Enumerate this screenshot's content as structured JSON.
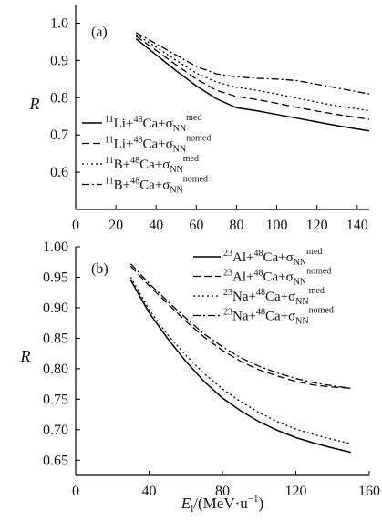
{
  "chart_data": [
    {
      "type": "line",
      "panel_label": "(a)",
      "ylabel": "R",
      "xlim": [
        0,
        146
      ],
      "ylim": [
        0.5,
        1.05
      ],
      "xticks": [
        0,
        20,
        40,
        60,
        80,
        100,
        120,
        140
      ],
      "yticks": [
        0.6,
        0.7,
        0.8,
        0.9,
        1.0
      ],
      "xtick_labels": [
        "0",
        "20",
        "40",
        "60",
        "80",
        "100",
        "120",
        "140"
      ],
      "ytick_labels": [
        "0.6",
        "0.7",
        "0.8",
        "0.9",
        "1.0"
      ],
      "legend_position": "bottom-left",
      "series": [
        {
          "legend": {
            "pre": "",
            "proj": "11",
            "projEl": "Li",
            "tgt": "48",
            "tgtEl": "Ca",
            "sig": "NN",
            "kind": "med"
          },
          "style": "solid",
          "x": [
            30,
            40,
            50,
            60,
            70,
            80,
            90,
            100,
            110,
            120,
            130,
            140,
            146
          ],
          "y": [
            0.958,
            0.915,
            0.872,
            0.832,
            0.797,
            0.773,
            0.765,
            0.755,
            0.745,
            0.735,
            0.725,
            0.716,
            0.711
          ]
        },
        {
          "legend": {
            "pre": "",
            "proj": "11",
            "projEl": "Li",
            "tgt": "48",
            "tgtEl": "Ca",
            "sig": "NN",
            "kind": "nomed"
          },
          "style": "dashed",
          "x": [
            30,
            40,
            50,
            60,
            70,
            80,
            90,
            100,
            110,
            120,
            130,
            140,
            146
          ],
          "y": [
            0.965,
            0.927,
            0.888,
            0.85,
            0.82,
            0.803,
            0.795,
            0.785,
            0.774,
            0.764,
            0.755,
            0.747,
            0.742
          ]
        },
        {
          "legend": {
            "pre": "",
            "proj": "11",
            "projEl": "B",
            "tgt": "48",
            "tgtEl": "Ca",
            "sig": "NN",
            "kind": "med"
          },
          "style": "dotted",
          "x": [
            30,
            40,
            50,
            60,
            70,
            80,
            90,
            100,
            110,
            120,
            130,
            140,
            146
          ],
          "y": [
            0.97,
            0.936,
            0.9,
            0.866,
            0.842,
            0.828,
            0.82,
            0.81,
            0.799,
            0.788,
            0.778,
            0.77,
            0.765
          ]
        },
        {
          "legend": {
            "pre": "",
            "proj": "11",
            "projEl": "B",
            "tgt": "48",
            "tgtEl": "Ca",
            "sig": "NN",
            "kind": "nomed"
          },
          "style": "dashdot",
          "x": [
            30,
            40,
            50,
            60,
            70,
            80,
            90,
            100,
            110,
            120,
            130,
            140,
            146
          ],
          "y": [
            0.975,
            0.945,
            0.914,
            0.884,
            0.864,
            0.856,
            0.852,
            0.85,
            0.846,
            0.836,
            0.826,
            0.816,
            0.81
          ]
        }
      ]
    },
    {
      "type": "line",
      "panel_label": "(b)",
      "ylabel": "R",
      "xlabel": {
        "E": "E",
        "sub": "l",
        "rest": "/(MeV·u",
        "sup": "−1",
        "close": ")"
      },
      "xlim": [
        0,
        160
      ],
      "ylim": [
        0.625,
        1.0
      ],
      "xticks": [
        0,
        40,
        80,
        120,
        160
      ],
      "yticks": [
        0.65,
        0.7,
        0.75,
        0.8,
        0.85,
        0.9,
        0.95,
        1.0
      ],
      "xtick_labels": [
        "0",
        "40",
        "80",
        "120",
        "160"
      ],
      "ytick_labels": [
        "0.65",
        "0.70",
        "0.75",
        "0.80",
        "0.85",
        "0.90",
        "0.95",
        "1.00"
      ],
      "legend_position": "top-right",
      "series": [
        {
          "legend": {
            "pre": "",
            "proj": "23",
            "projEl": "Al",
            "tgt": "48",
            "tgtEl": "Ca",
            "sig": "NN",
            "kind": "med"
          },
          "style": "solid",
          "x": [
            30,
            40,
            50,
            60,
            70,
            80,
            90,
            100,
            110,
            120,
            130,
            140,
            150
          ],
          "y": [
            0.945,
            0.892,
            0.85,
            0.812,
            0.779,
            0.752,
            0.731,
            0.713,
            0.699,
            0.687,
            0.678,
            0.67,
            0.663
          ]
        },
        {
          "legend": {
            "pre": "",
            "proj": "23",
            "projEl": "Al",
            "tgt": "48",
            "tgtEl": "Ca",
            "sig": "NN",
            "kind": "nomed"
          },
          "style": "dashed",
          "x": [
            30,
            40,
            50,
            60,
            70,
            80,
            90,
            100,
            110,
            120,
            130,
            140,
            150
          ],
          "y": [
            0.968,
            0.936,
            0.907,
            0.878,
            0.852,
            0.83,
            0.812,
            0.798,
            0.788,
            0.779,
            0.773,
            0.77,
            0.768
          ]
        },
        {
          "legend": {
            "pre": "",
            "proj": "23",
            "projEl": "Na",
            "tgt": "48",
            "tgtEl": "Ca",
            "sig": "NN",
            "kind": "med"
          },
          "style": "dotted",
          "x": [
            30,
            40,
            50,
            60,
            70,
            80,
            90,
            100,
            110,
            120,
            130,
            140,
            150
          ],
          "y": [
            0.95,
            0.897,
            0.856,
            0.822,
            0.792,
            0.767,
            0.746,
            0.728,
            0.713,
            0.701,
            0.692,
            0.684,
            0.677
          ]
        },
        {
          "legend": {
            "pre": "",
            "proj": "23",
            "projEl": "Na",
            "tgt": "48",
            "tgtEl": "Ca",
            "sig": "NN",
            "kind": "nomed"
          },
          "style": "dashdot",
          "x": [
            30,
            40,
            50,
            60,
            70,
            80,
            90,
            100,
            110,
            120,
            130,
            140,
            150
          ],
          "y": [
            0.972,
            0.94,
            0.911,
            0.883,
            0.857,
            0.836,
            0.818,
            0.804,
            0.793,
            0.784,
            0.777,
            0.772,
            0.768
          ]
        }
      ]
    }
  ]
}
